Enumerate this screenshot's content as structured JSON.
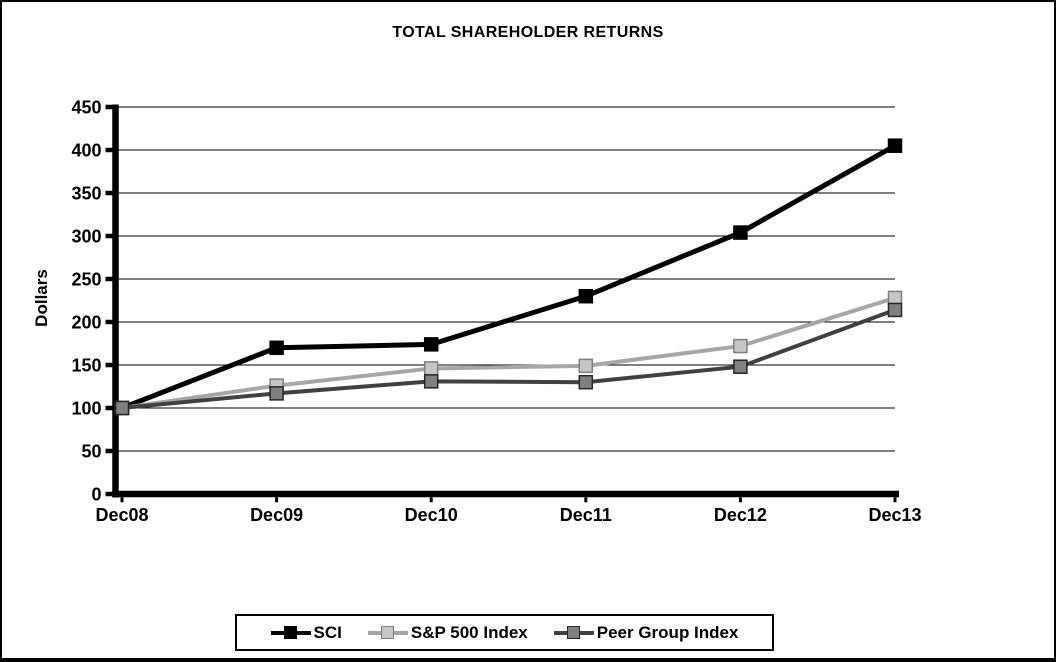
{
  "frame": {
    "background": "#ffffff",
    "border_color": "#000000"
  },
  "chart_data": {
    "type": "line",
    "title": "TOTAL SHAREHOLDER RETURNS",
    "ylabel": "Dollars",
    "xlabel": "",
    "categories": [
      "Dec08",
      "Dec09",
      "Dec10",
      "Dec11",
      "Dec12",
      "Dec13"
    ],
    "ylim": [
      0,
      450
    ],
    "y_ticks": [
      0,
      50,
      100,
      150,
      200,
      250,
      300,
      350,
      400,
      450
    ],
    "grid": true,
    "legend_position": "bottom",
    "series": [
      {
        "name": "SCI",
        "values": [
          100,
          170,
          174,
          230,
          304,
          405
        ],
        "line_color": "#000000",
        "marker_fill": "#000000",
        "marker_border": "#000000"
      },
      {
        "name": "S&P 500 Index",
        "values": [
          100,
          126,
          146,
          149,
          172,
          228
        ],
        "line_color": "#a6a6a6",
        "marker_fill": "#c6c6c6",
        "marker_border": "#7f7f7f"
      },
      {
        "name": "Peer Group Index",
        "values": [
          100,
          117,
          131,
          130,
          148,
          214
        ],
        "line_color": "#404040",
        "marker_fill": "#808080",
        "marker_border": "#262626"
      }
    ]
  }
}
